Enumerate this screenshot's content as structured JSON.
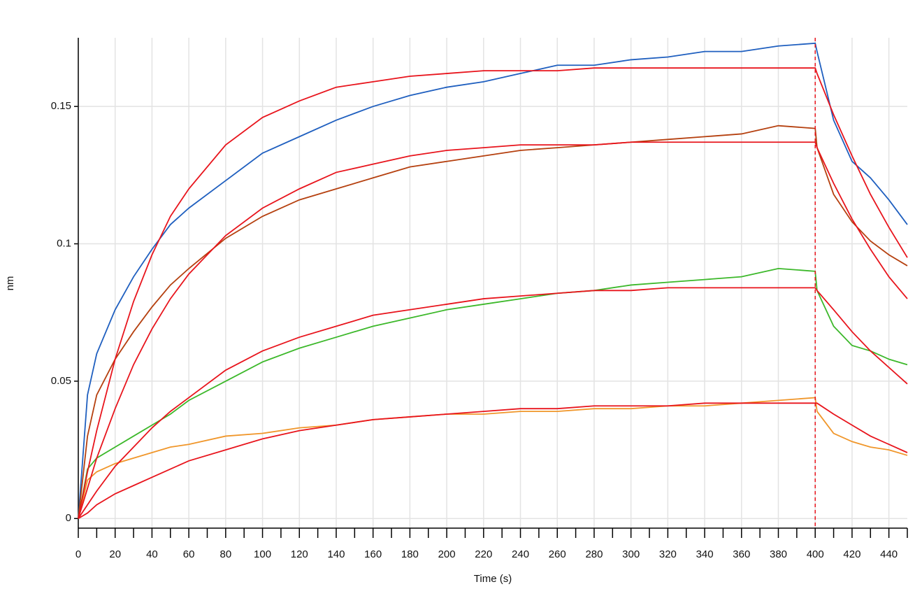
{
  "chart_data": {
    "type": "line",
    "xlabel": "Time (s)",
    "ylabel": "nm",
    "x": [
      0,
      5,
      10,
      20,
      30,
      40,
      50,
      60,
      80,
      100,
      120,
      140,
      160,
      180,
      200,
      220,
      240,
      260,
      280,
      300,
      320,
      340,
      360,
      380,
      400,
      401,
      410,
      420,
      430,
      440,
      450
    ],
    "series": [
      {
        "color": "#1f5fbf",
        "values": [
          0,
          0.045,
          0.06,
          0.076,
          0.088,
          0.098,
          0.107,
          0.113,
          0.123,
          0.133,
          0.139,
          0.145,
          0.15,
          0.154,
          0.157,
          0.159,
          0.162,
          0.165,
          0.165,
          0.167,
          0.168,
          0.17,
          0.17,
          0.172,
          0.173,
          0.17,
          0.145,
          0.13,
          0.124,
          0.116,
          0.107
        ]
      },
      {
        "color": "#b5400f",
        "values": [
          0,
          0.03,
          0.045,
          0.058,
          0.068,
          0.077,
          0.085,
          0.091,
          0.102,
          0.11,
          0.116,
          0.12,
          0.124,
          0.128,
          0.13,
          0.132,
          0.134,
          0.135,
          0.136,
          0.137,
          0.138,
          0.139,
          0.14,
          0.143,
          0.142,
          0.135,
          0.118,
          0.108,
          0.101,
          0.096,
          0.092
        ]
      },
      {
        "color": "#3cb82a",
        "values": [
          0,
          0.018,
          0.022,
          0.026,
          0.03,
          0.034,
          0.038,
          0.043,
          0.05,
          0.057,
          0.062,
          0.066,
          0.07,
          0.073,
          0.076,
          0.078,
          0.08,
          0.082,
          0.083,
          0.085,
          0.086,
          0.087,
          0.088,
          0.091,
          0.09,
          0.083,
          0.07,
          0.063,
          0.061,
          0.058,
          0.056
        ]
      },
      {
        "color": "#f0962a",
        "values": [
          0,
          0.014,
          0.017,
          0.02,
          0.022,
          0.024,
          0.026,
          0.027,
          0.03,
          0.031,
          0.033,
          0.034,
          0.036,
          0.037,
          0.038,
          0.038,
          0.039,
          0.039,
          0.04,
          0.04,
          0.041,
          0.041,
          0.042,
          0.043,
          0.044,
          0.039,
          0.031,
          0.028,
          0.026,
          0.025,
          0.023
        ]
      },
      {
        "color": "#e8141c",
        "values": [
          0,
          0.017,
          0.032,
          0.058,
          0.079,
          0.096,
          0.11,
          0.12,
          0.136,
          0.146,
          0.152,
          0.157,
          0.159,
          0.161,
          0.162,
          0.163,
          0.163,
          0.163,
          0.164,
          0.164,
          0.164,
          0.164,
          0.164,
          0.164,
          0.164,
          0.162,
          0.147,
          0.132,
          0.118,
          0.106,
          0.095
        ]
      },
      {
        "color": "#e8141c",
        "values": [
          0,
          0.011,
          0.022,
          0.04,
          0.056,
          0.069,
          0.08,
          0.089,
          0.103,
          0.113,
          0.12,
          0.126,
          0.129,
          0.132,
          0.134,
          0.135,
          0.136,
          0.136,
          0.136,
          0.137,
          0.137,
          0.137,
          0.137,
          0.137,
          0.137,
          0.135,
          0.122,
          0.109,
          0.098,
          0.088,
          0.08
        ]
      },
      {
        "color": "#e8141c",
        "values": [
          0,
          0.005,
          0.01,
          0.019,
          0.026,
          0.033,
          0.039,
          0.044,
          0.054,
          0.061,
          0.066,
          0.07,
          0.074,
          0.076,
          0.078,
          0.08,
          0.081,
          0.082,
          0.083,
          0.083,
          0.084,
          0.084,
          0.084,
          0.084,
          0.084,
          0.083,
          0.076,
          0.068,
          0.061,
          0.055,
          0.049
        ]
      },
      {
        "color": "#e8141c",
        "values": [
          0,
          0.002,
          0.005,
          0.009,
          0.012,
          0.015,
          0.018,
          0.021,
          0.025,
          0.029,
          0.032,
          0.034,
          0.036,
          0.037,
          0.038,
          0.039,
          0.04,
          0.04,
          0.041,
          0.041,
          0.041,
          0.042,
          0.042,
          0.042,
          0.042,
          0.042,
          0.038,
          0.034,
          0.03,
          0.027,
          0.024
        ]
      }
    ],
    "xlim": [
      0,
      450
    ],
    "ylim": [
      -0.0035,
      0.175
    ],
    "xticks": [
      0,
      20,
      40,
      60,
      80,
      100,
      120,
      140,
      160,
      180,
      200,
      220,
      240,
      260,
      280,
      300,
      320,
      340,
      360,
      380,
      400,
      420,
      440
    ],
    "xminorticks": [
      10,
      30,
      50,
      70,
      90,
      110,
      130,
      150,
      170,
      190,
      210,
      230,
      250,
      270,
      290,
      310,
      330,
      350,
      370,
      390,
      410,
      430,
      450
    ],
    "yticks": [
      0,
      0.05,
      0.1,
      0.15
    ],
    "vlines": [
      400
    ],
    "vline_color": "#e8141c",
    "grid": true
  }
}
